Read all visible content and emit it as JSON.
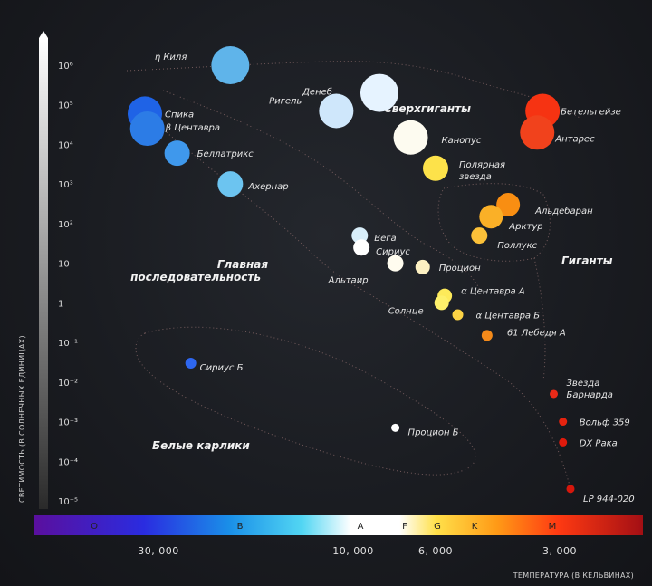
{
  "chart_data": {
    "type": "scatter",
    "ylabel": "СВЕТИМОСТЬ (В СОЛНЕЧНЫХ ЕДИНИЦАХ)",
    "xlabel": "ТЕМПЕРАТУРА (В КЕЛЬВИНАХ)",
    "y_scale": "log",
    "ylim": [
      1e-05,
      1000000
    ],
    "y_ticks": [
      {
        "value": 1000000,
        "label": "10⁶"
      },
      {
        "value": 100000,
        "label": "10⁵"
      },
      {
        "value": 10000,
        "label": "10⁴"
      },
      {
        "value": 1000,
        "label": "10³"
      },
      {
        "value": 100,
        "label": "10²"
      },
      {
        "value": 10,
        "label": "10"
      },
      {
        "value": 1,
        "label": "1"
      },
      {
        "value": 0.1,
        "label": "10⁻¹"
      },
      {
        "value": 0.01,
        "label": "10⁻²"
      },
      {
        "value": 0.001,
        "label": "10⁻³"
      },
      {
        "value": 0.0001,
        "label": "10⁻⁴"
      },
      {
        "value": 1e-05,
        "label": "10⁻⁵"
      }
    ],
    "x_ticks": [
      {
        "value": 30000,
        "label": "30, 000"
      },
      {
        "value": 10000,
        "label": "10, 000"
      },
      {
        "value": 6000,
        "label": "6, 000"
      },
      {
        "value": 3000,
        "label": "3, 000"
      }
    ],
    "spectral_classes": [
      "O",
      "B",
      "A",
      "F",
      "G",
      "K",
      "M",
      ""
    ],
    "regions": [
      "Сверхгиганты",
      "Гиганты",
      "Главная последовательность",
      "Белые карлики"
    ],
    "stars": [
      {
        "name": "η Киля",
        "temperature": 20000,
        "luminosity": 1000000,
        "color": "#5fb4ea"
      },
      {
        "name": "Денеб",
        "temperature": 8500,
        "luminosity": 200000,
        "color": "#e6f3ff"
      },
      {
        "name": "Ригель",
        "temperature": 11000,
        "luminosity": 70000,
        "color": "#cfe7fb"
      },
      {
        "name": "Спика",
        "temperature": 40000,
        "luminosity": 60000,
        "color": "#1f63e6"
      },
      {
        "name": "β Центавра",
        "temperature": 38000,
        "luminosity": 25000,
        "color": "#2c7ce6"
      },
      {
        "name": "Канопус",
        "temperature": 7000,
        "luminosity": 15000,
        "color": "#fdfbf0"
      },
      {
        "name": "Беллатрикс",
        "temperature": 27000,
        "luminosity": 6000,
        "color": "#3f98ec"
      },
      {
        "name": "Бетельгейзе",
        "temperature": 3300,
        "luminosity": 70000,
        "color": "#f63312"
      },
      {
        "name": "Антарес",
        "temperature": 3400,
        "luminosity": 20000,
        "color": "#f1421c"
      },
      {
        "name": "Полярная звезда",
        "temperature": 6000,
        "luminosity": 2500,
        "color": "#fde24a"
      },
      {
        "name": "Ахернар",
        "temperature": 20000,
        "luminosity": 1000,
        "color": "#6cc4f0"
      },
      {
        "name": "Альдебаран",
        "temperature": 4000,
        "luminosity": 300,
        "color": "#f98e12"
      },
      {
        "name": "Арктур",
        "temperature": 4400,
        "luminosity": 150,
        "color": "#fab027"
      },
      {
        "name": "Поллукс",
        "temperature": 4700,
        "luminosity": 50,
        "color": "#fcc139"
      },
      {
        "name": "Вега",
        "temperature": 9600,
        "luminosity": 50,
        "color": "#d8eefa"
      },
      {
        "name": "Сириус",
        "temperature": 9500,
        "luminosity": 25,
        "color": "#ffffff"
      },
      {
        "name": "Альтаир",
        "temperature": 7700,
        "luminosity": 10,
        "color": "#fffcef"
      },
      {
        "name": "Процион",
        "temperature": 6500,
        "luminosity": 8,
        "color": "#fdf0c2"
      },
      {
        "name": "α Центавра А",
        "temperature": 5700,
        "luminosity": 1.5,
        "color": "#fdea5a"
      },
      {
        "name": "Солнце",
        "temperature": 5800,
        "luminosity": 1,
        "color": "#fdf06a"
      },
      {
        "name": "α Центавра Б",
        "temperature": 5300,
        "luminosity": 0.5,
        "color": "#fcd345"
      },
      {
        "name": "61 Лебедя А",
        "temperature": 4500,
        "luminosity": 0.15,
        "color": "#f48a1a"
      },
      {
        "name": "Звезда Барнарда",
        "temperature": 3100,
        "luminosity": 0.005,
        "color": "#ea2a18"
      },
      {
        "name": "Вольф 359",
        "temperature": 2800,
        "luminosity": 0.001,
        "color": "#e5230f"
      },
      {
        "name": "DX Рака",
        "temperature": 2800,
        "luminosity": 0.0003,
        "color": "#df1a0c"
      },
      {
        "name": "LP 944-020",
        "temperature": 2400,
        "luminosity": 2e-05,
        "color": "#d6170c"
      },
      {
        "name": "Сириус Б",
        "temperature": 25000,
        "luminosity": 0.03,
        "color": "#2e67f0"
      },
      {
        "name": "Процион Б",
        "temperature": 7700,
        "luminosity": 0.0007,
        "color": "#ffffff"
      }
    ]
  }
}
